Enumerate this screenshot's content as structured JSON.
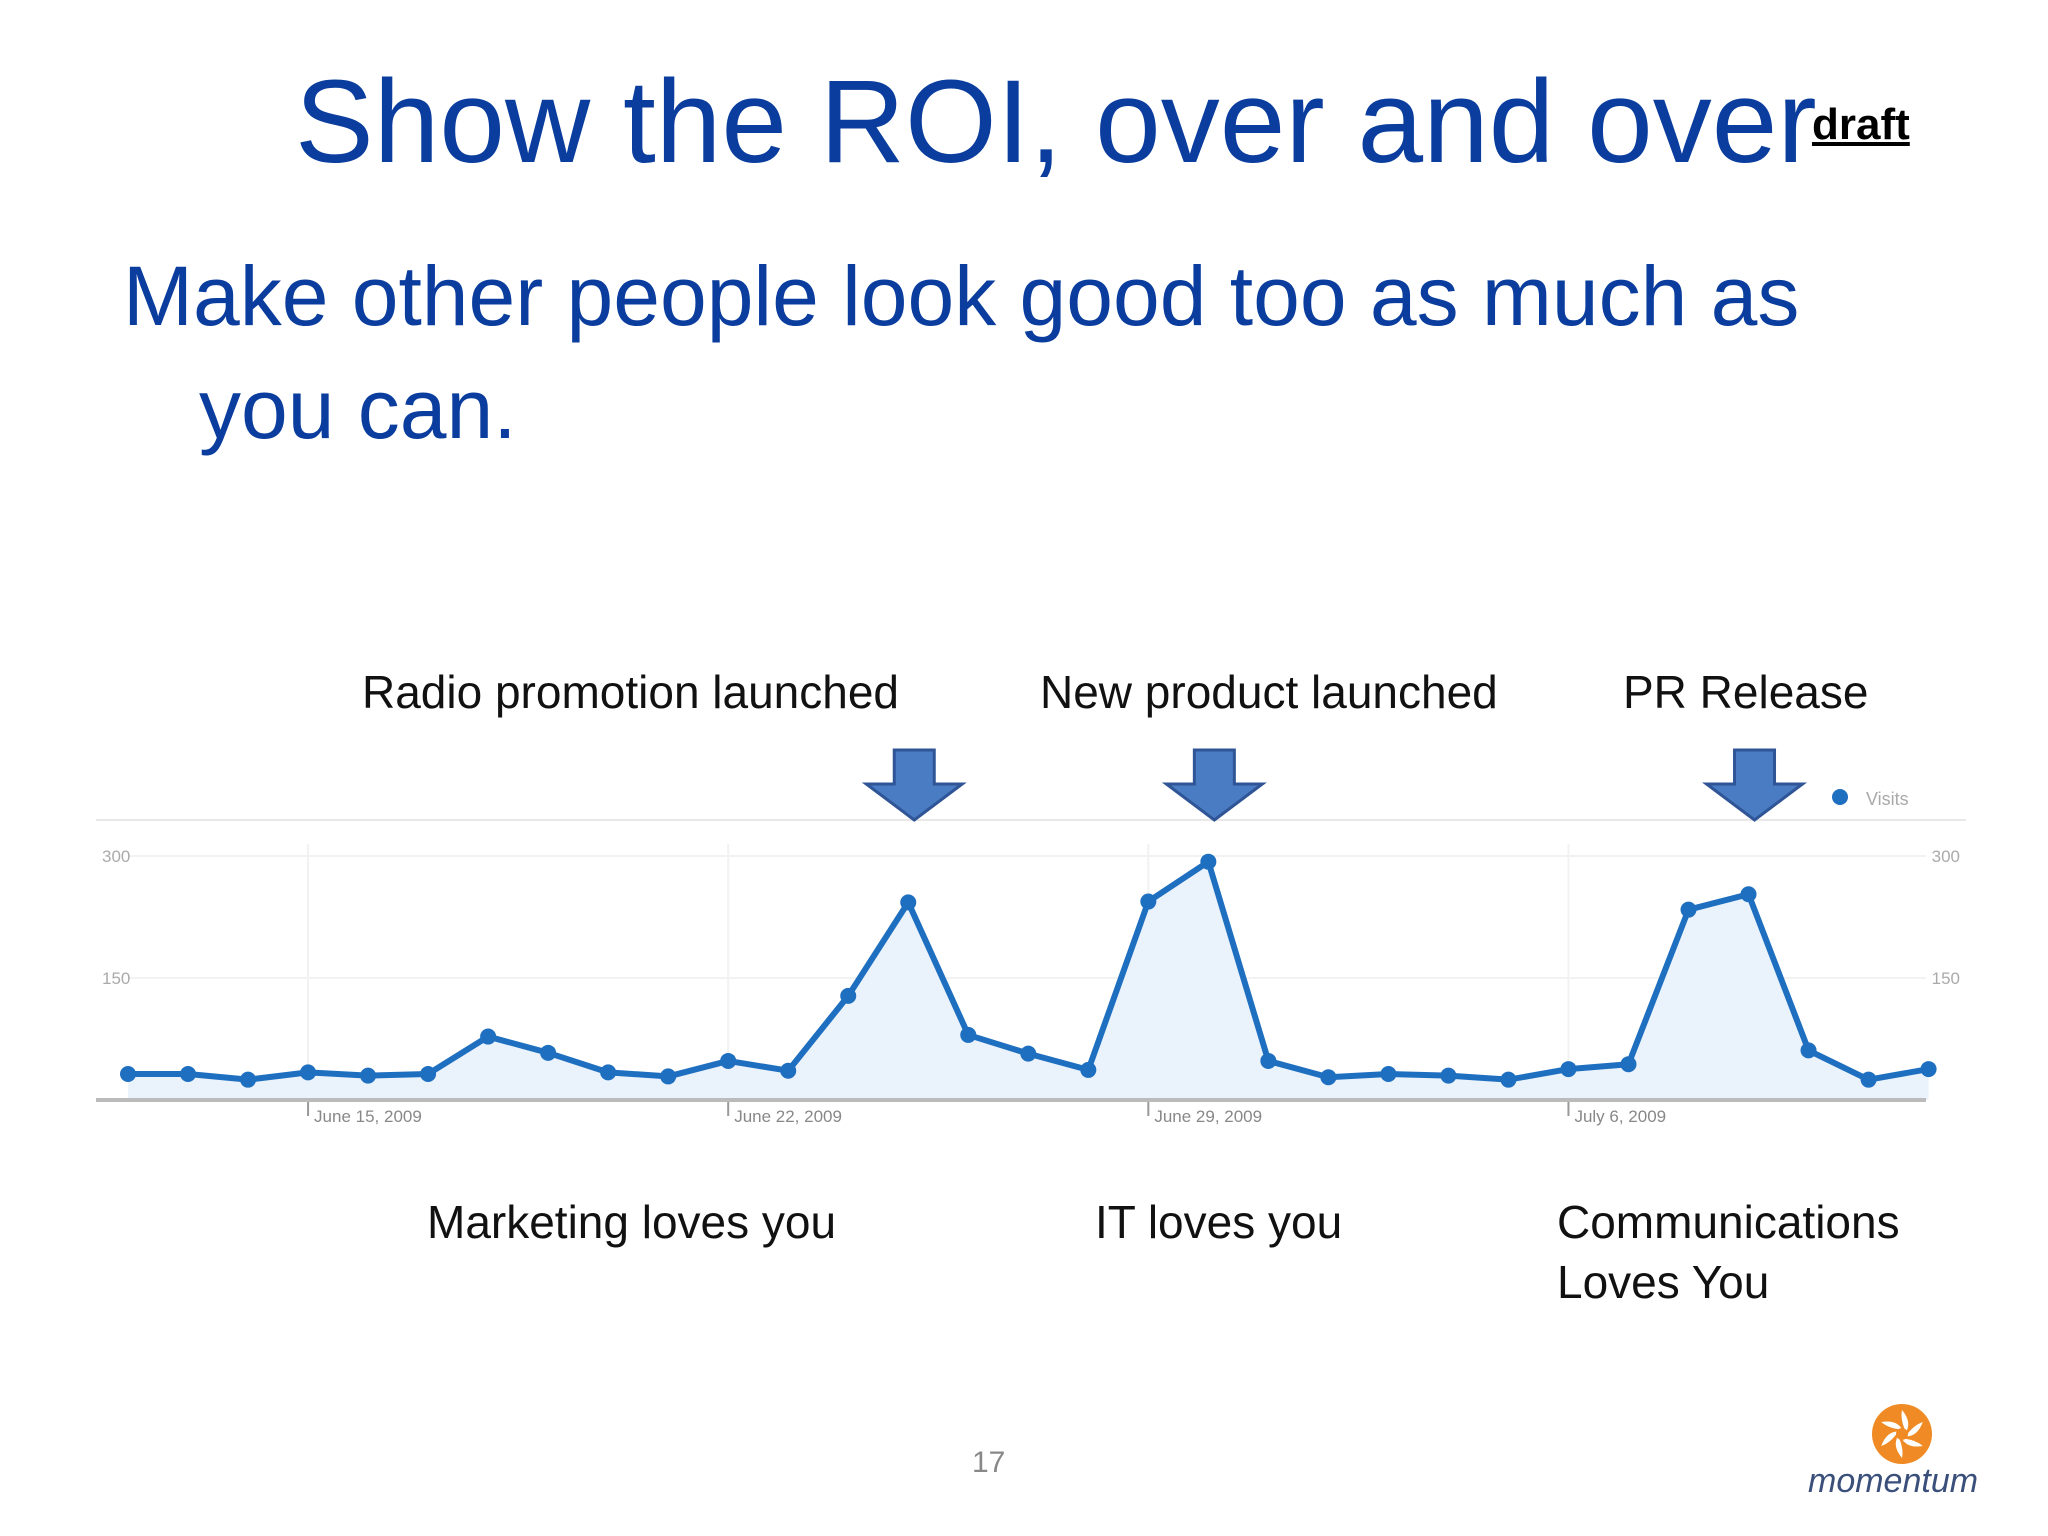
{
  "slide": {
    "title": "Show the ROI, over and over",
    "draft_label": "draft",
    "bullet_line1": "Make other people look good too as much as",
    "bullet_line2": "you can.",
    "page_number": "17",
    "logo_text": "momentum",
    "title_color": "#0a3d9e"
  },
  "annotations": {
    "top": [
      {
        "text": "Radio promotion launched",
        "at_index": 13
      },
      {
        "text": "New product launched",
        "at_index": 18
      },
      {
        "text": "PR Release",
        "at_index": 27
      }
    ],
    "bottom": [
      {
        "text": "Marketing loves you"
      },
      {
        "text": "IT loves you"
      },
      {
        "text": "Communications",
        "text2": "Loves You"
      }
    ],
    "arrow_color": "#4a7cc4"
  },
  "chart_data": {
    "type": "area",
    "series": [
      {
        "name": "Visits",
        "color": "#1f6fc0",
        "values": [
          32,
          32,
          25,
          34,
          30,
          32,
          78,
          58,
          34,
          29,
          48,
          36,
          128,
          243,
          80,
          57,
          37,
          244,
          293,
          48,
          28,
          32,
          30,
          25,
          38,
          44,
          234,
          253,
          61,
          25,
          38
        ]
      }
    ],
    "x_tick_labels": [
      {
        "label": "June 15, 2009",
        "index": 3
      },
      {
        "label": "June 22, 2009",
        "index": 10
      },
      {
        "label": "June 29, 2009",
        "index": 17
      },
      {
        "label": "July 6, 2009",
        "index": 24
      }
    ],
    "y_tick_labels": [
      "300",
      "150"
    ],
    "y_ticks": [
      300,
      150
    ],
    "ylim": [
      0,
      300
    ],
    "legend": {
      "label": "Visits",
      "position": "top-right"
    },
    "grid": true
  }
}
